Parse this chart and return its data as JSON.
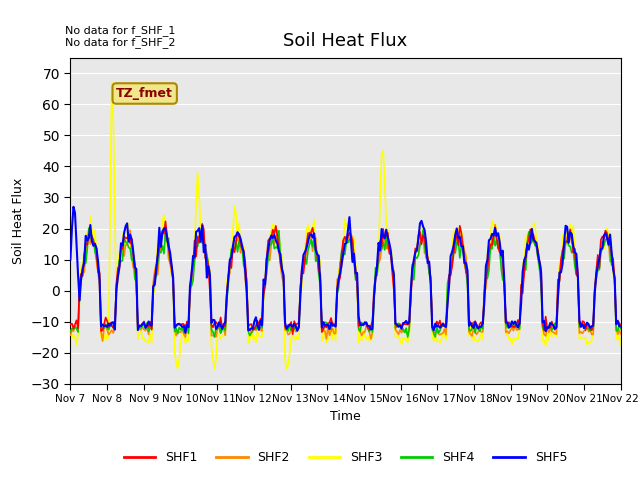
{
  "title": "Soil Heat Flux",
  "xlabel": "Time",
  "ylabel": "Soil Heat Flux",
  "ylim": [
    -30,
    75
  ],
  "yticks": [
    -30,
    -20,
    -10,
    0,
    10,
    20,
    30,
    40,
    50,
    60,
    70
  ],
  "annotation_text": "No data for f_SHF_1\nNo data for f_SHF_2",
  "box_label": "TZ_fmet",
  "series_colors": {
    "SHF1": "#ff0000",
    "SHF2": "#ff8800",
    "SHF3": "#ffff00",
    "SHF4": "#00cc00",
    "SHF5": "#0000ff"
  },
  "series_linewidths": {
    "SHF1": 1.2,
    "SHF2": 1.2,
    "SHF3": 1.2,
    "SHF4": 1.2,
    "SHF5": 1.5
  },
  "plot_bg_color": "#e8e8e8",
  "x_tick_labels": [
    "Nov 7",
    "Nov 8",
    "Nov 9",
    "Nov 10",
    "Nov 11",
    "Nov 12",
    "Nov 13",
    "Nov 14",
    "Nov 15",
    "Nov 16",
    "Nov 17",
    "Nov 18",
    "Nov 19",
    "Nov 20",
    "Nov 21",
    "Nov 22"
  ],
  "legend_entries": [
    "SHF1",
    "SHF2",
    "SHF3",
    "SHF4",
    "SHF5"
  ],
  "n_days": 15,
  "n_points_per_day": 24
}
